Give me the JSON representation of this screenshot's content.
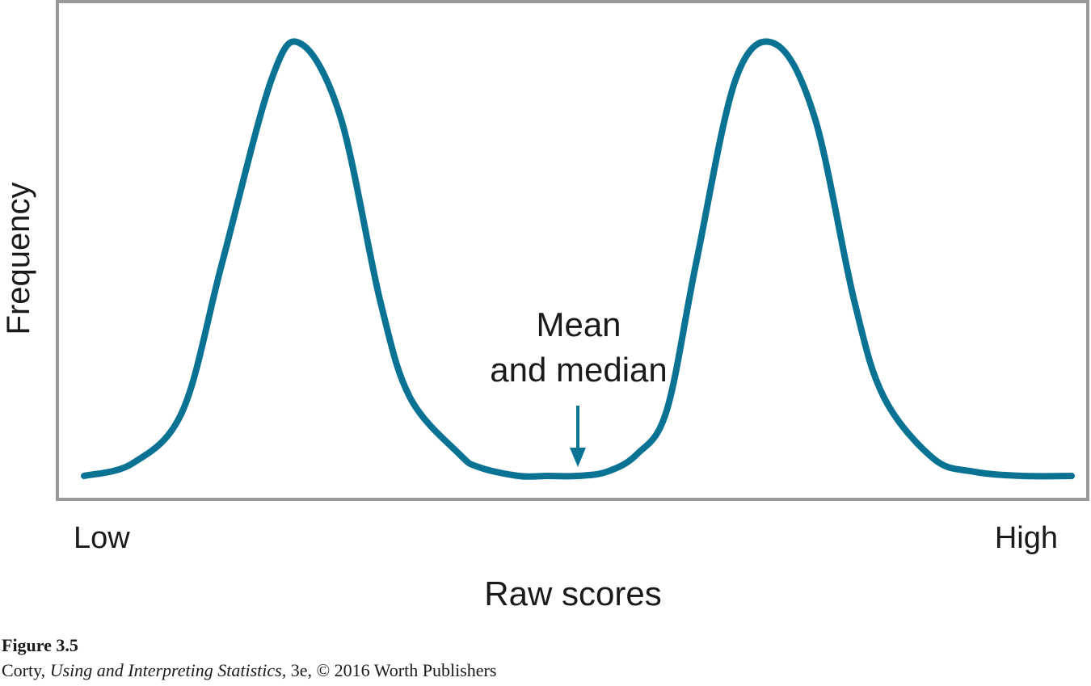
{
  "chart_data": {
    "type": "line",
    "xlabel": "Raw scores",
    "ylabel": "Frequency",
    "x_tick_labels": {
      "low": "Low",
      "high": "High"
    },
    "x": [
      0.0,
      0.05,
      0.1,
      0.14,
      0.19,
      0.22,
      0.26,
      0.3,
      0.33,
      0.38,
      0.4,
      0.44,
      0.47,
      0.5,
      0.53,
      0.56,
      0.59,
      0.62,
      0.66,
      0.7,
      0.74,
      0.78,
      0.81,
      0.86,
      0.9,
      0.95,
      1.0
    ],
    "y": [
      0.0,
      0.03,
      0.15,
      0.49,
      0.91,
      0.99,
      0.82,
      0.4,
      0.18,
      0.05,
      0.02,
      0.0,
      0.0,
      0.0,
      0.01,
      0.05,
      0.15,
      0.49,
      0.91,
      0.99,
      0.82,
      0.4,
      0.18,
      0.04,
      0.01,
      0.0,
      0.0
    ],
    "xlim": [
      0,
      1
    ],
    "ylim": [
      0,
      1
    ],
    "grid": false,
    "line_color": "#0a7394",
    "frame_color": "#999999",
    "annotation": {
      "lines": [
        "Mean",
        "and median"
      ],
      "x": 0.5,
      "y": 0.0
    }
  },
  "caption": {
    "figure": "Figure 3.5",
    "author": "Corty, ",
    "book": "Using and Interpreting Statistics,",
    "rest": " 3e, © 2016 Worth Publishers"
  }
}
